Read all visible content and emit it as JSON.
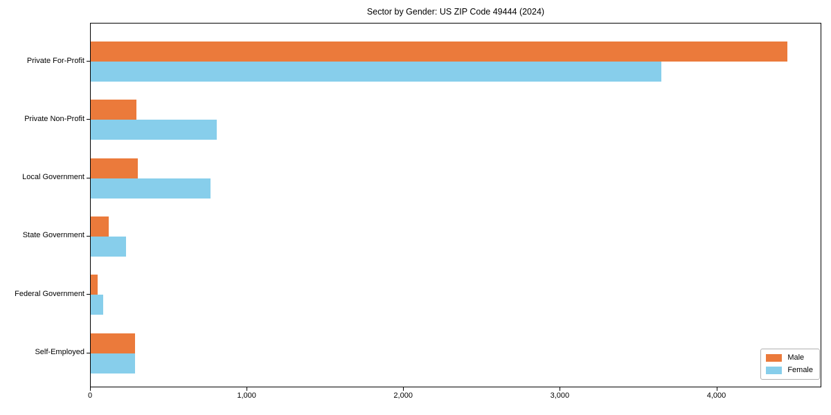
{
  "chart_data": {
    "type": "bar",
    "orientation": "horizontal",
    "title": "Sector by Gender: US ZIP Code 49444 (2024)",
    "categories": [
      "Private For-Profit",
      "Private Non-Profit",
      "Local Government",
      "State Government",
      "Federal Government",
      "Self-Employed"
    ],
    "series": [
      {
        "name": "Male",
        "color": "#EB7A3B",
        "values": [
          4447,
          292,
          301,
          115,
          44,
          283
        ]
      },
      {
        "name": "Female",
        "color": "#87CEEB",
        "values": [
          3642,
          805,
          765,
          226,
          80,
          283
        ]
      }
    ],
    "xlim": [
      0,
      4670
    ],
    "xticks": [
      0,
      1000,
      2000,
      3000,
      4000
    ],
    "xtick_labels": [
      "0",
      "1,000",
      "2,000",
      "3,000",
      "4,000"
    ],
    "grid": false,
    "legend": {
      "position": "lower right"
    }
  }
}
